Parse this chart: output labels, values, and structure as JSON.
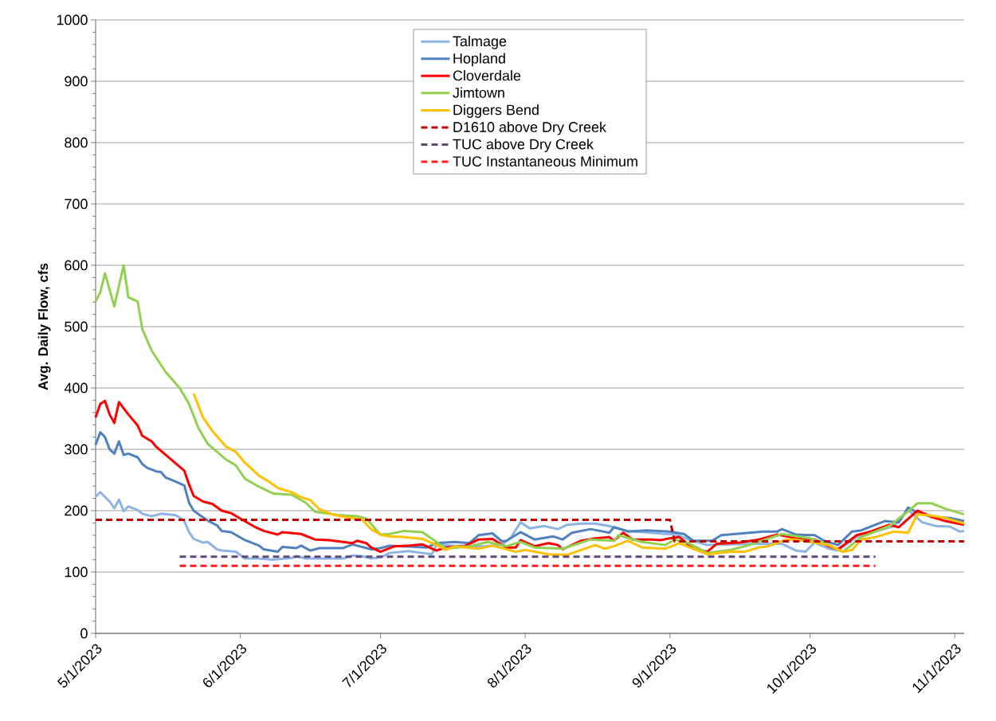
{
  "chart_data": {
    "type": "line",
    "ylabel": "Avg. Daily Flow, cfs",
    "xlim": [
      "2023-05-01",
      "2023-11-03"
    ],
    "xticks": [
      {
        "value": "2023-05-01",
        "label": "5/1/2023"
      },
      {
        "value": "2023-06-01",
        "label": "6/1/2023"
      },
      {
        "value": "2023-07-01",
        "label": "7/1/2023"
      },
      {
        "value": "2023-08-01",
        "label": "8/1/2023"
      },
      {
        "value": "2023-09-01",
        "label": "9/1/2023"
      },
      {
        "value": "2023-10-01",
        "label": "10/1/2023"
      },
      {
        "value": "2023-11-01",
        "label": "11/1/2023"
      }
    ],
    "ylim": [
      0,
      1000
    ],
    "yticks": [
      0,
      100,
      200,
      300,
      400,
      500,
      600,
      700,
      800,
      900,
      1000
    ],
    "grid": "y",
    "legend": "top",
    "series": [
      {
        "name": "Talmage",
        "color": "#8db4e2",
        "x": [
          "2023-05-01",
          "2023-05-02",
          "2023-05-04",
          "2023-05-05",
          "2023-05-06",
          "2023-05-07",
          "2023-05-08",
          "2023-05-10",
          "2023-05-11",
          "2023-05-13",
          "2023-05-15",
          "2023-05-18",
          "2023-05-19",
          "2023-05-20",
          "2023-05-21",
          "2023-05-22",
          "2023-05-24",
          "2023-05-25",
          "2023-05-27",
          "2023-05-28",
          "2023-05-31",
          "2023-06-02",
          "2023-06-05",
          "2023-06-08",
          "2023-06-12",
          "2023-06-13",
          "2023-06-15",
          "2023-06-20",
          "2023-06-23",
          "2023-06-25",
          "2023-06-27",
          "2023-06-29",
          "2023-07-01",
          "2023-07-03",
          "2023-07-07",
          "2023-07-10",
          "2023-07-12",
          "2023-07-13",
          "2023-07-17",
          "2023-07-23",
          "2023-07-27",
          "2023-07-29",
          "2023-07-31",
          "2023-08-02",
          "2023-08-05",
          "2023-08-08",
          "2023-08-10",
          "2023-08-13",
          "2023-08-16",
          "2023-08-19",
          "2023-08-20",
          "2023-08-23",
          "2023-08-28",
          "2023-08-31",
          "2023-09-02",
          "2023-09-05",
          "2023-09-09",
          "2023-09-14",
          "2023-09-20",
          "2023-09-25",
          "2023-09-28",
          "2023-09-30",
          "2023-10-02",
          "2023-10-05",
          "2023-10-07",
          "2023-10-11",
          "2023-10-15",
          "2023-10-19",
          "2023-10-22",
          "2023-10-25",
          "2023-10-28",
          "2023-10-31",
          "2023-11-02",
          "2023-11-03"
        ],
        "values": [
          223,
          230,
          215,
          204,
          218,
          199,
          207,
          201,
          195,
          191,
          195,
          193,
          189,
          183,
          165,
          154,
          148,
          149,
          137,
          135,
          133,
          122,
          122,
          120,
          123,
          126,
          122,
          122,
          122,
          127,
          126,
          122,
          124,
          131,
          134,
          131,
          129,
          144,
          143,
          142,
          144,
          157,
          181,
          171,
          175,
          170,
          177,
          179,
          179,
          175,
          173,
          167,
          164,
          162,
          162,
          153,
          144,
          145,
          146,
          146,
          135,
          133,
          148,
          138,
          135,
          157,
          166,
          175,
          201,
          181,
          175,
          174,
          166,
          167
        ]
      },
      {
        "name": "Hopland",
        "color": "#4f81bd",
        "x": [
          "2023-05-01",
          "2023-05-02",
          "2023-05-03",
          "2023-05-04",
          "2023-05-05",
          "2023-05-06",
          "2023-05-07",
          "2023-05-08",
          "2023-05-10",
          "2023-05-11",
          "2023-05-12",
          "2023-05-14",
          "2023-05-15",
          "2023-05-16",
          "2023-05-18",
          "2023-05-20",
          "2023-05-21",
          "2023-05-22",
          "2023-05-24",
          "2023-05-25",
          "2023-05-27",
          "2023-05-28",
          "2023-05-30",
          "2023-06-02",
          "2023-06-05",
          "2023-06-06",
          "2023-06-09",
          "2023-06-10",
          "2023-06-13",
          "2023-06-14",
          "2023-06-16",
          "2023-06-18",
          "2023-06-23",
          "2023-06-25",
          "2023-06-29",
          "2023-07-01",
          "2023-07-03",
          "2023-07-11",
          "2023-07-13",
          "2023-07-17",
          "2023-07-20",
          "2023-07-22",
          "2023-07-25",
          "2023-07-27",
          "2023-07-28",
          "2023-07-31",
          "2023-08-03",
          "2023-08-07",
          "2023-08-09",
          "2023-08-11",
          "2023-08-15",
          "2023-08-19",
          "2023-08-20",
          "2023-08-23",
          "2023-08-27",
          "2023-09-01",
          "2023-09-04",
          "2023-09-06",
          "2023-09-10",
          "2023-09-12",
          "2023-09-15",
          "2023-09-18",
          "2023-09-21",
          "2023-09-24",
          "2023-09-25",
          "2023-09-28",
          "2023-10-02",
          "2023-10-04",
          "2023-10-07",
          "2023-10-10",
          "2023-10-12",
          "2023-10-15",
          "2023-10-17",
          "2023-10-20",
          "2023-10-22",
          "2023-10-24",
          "2023-10-27",
          "2023-10-31",
          "2023-11-03"
        ],
        "values": [
          307,
          328,
          320,
          300,
          293,
          313,
          291,
          293,
          287,
          276,
          270,
          264,
          263,
          254,
          248,
          241,
          213,
          200,
          189,
          184,
          176,
          167,
          165,
          152,
          143,
          137,
          133,
          141,
          139,
          143,
          135,
          139,
          139,
          145,
          137,
          139,
          143,
          140,
          147,
          149,
          147,
          160,
          163,
          150,
          151,
          165,
          153,
          158,
          153,
          164,
          170,
          164,
          173,
          166,
          168,
          166,
          162,
          151,
          151,
          160,
          162,
          164,
          166,
          166,
          170,
          161,
          160,
          151,
          144,
          166,
          168,
          177,
          183,
          181,
          205,
          197,
          190,
          188,
          183
        ]
      },
      {
        "name": "Cloverdale",
        "color": "#ff0000",
        "x": [
          "2023-05-01",
          "2023-05-02",
          "2023-05-03",
          "2023-05-04",
          "2023-05-05",
          "2023-05-06",
          "2023-05-08",
          "2023-05-10",
          "2023-05-11",
          "2023-05-13",
          "2023-05-14",
          "2023-05-16",
          "2023-05-18",
          "2023-05-20",
          "2023-05-21",
          "2023-05-22",
          "2023-05-24",
          "2023-05-26",
          "2023-05-28",
          "2023-05-30",
          "2023-06-01",
          "2023-06-04",
          "2023-06-06",
          "2023-06-09",
          "2023-06-10",
          "2023-06-14",
          "2023-06-17",
          "2023-06-20",
          "2023-06-22",
          "2023-06-25",
          "2023-06-26",
          "2023-06-28",
          "2023-06-29",
          "2023-07-01",
          "2023-07-04",
          "2023-07-07",
          "2023-07-10",
          "2023-07-13",
          "2023-07-15",
          "2023-07-19",
          "2023-07-22",
          "2023-07-25",
          "2023-07-28",
          "2023-07-30",
          "2023-07-31",
          "2023-08-03",
          "2023-08-06",
          "2023-08-08",
          "2023-08-09",
          "2023-08-13",
          "2023-08-16",
          "2023-08-19",
          "2023-08-20",
          "2023-08-22",
          "2023-08-24",
          "2023-08-28",
          "2023-08-30",
          "2023-09-01",
          "2023-09-03",
          "2023-09-06",
          "2023-09-09",
          "2023-09-11",
          "2023-09-16",
          "2023-09-20",
          "2023-09-24",
          "2023-09-28",
          "2023-10-02",
          "2023-10-05",
          "2023-10-07",
          "2023-10-11",
          "2023-10-14",
          "2023-10-18",
          "2023-10-20",
          "2023-10-24",
          "2023-10-27",
          "2023-10-30",
          "2023-11-03"
        ],
        "values": [
          352,
          374,
          379,
          357,
          343,
          377,
          357,
          339,
          322,
          313,
          304,
          291,
          278,
          265,
          243,
          224,
          215,
          211,
          200,
          196,
          187,
          174,
          167,
          161,
          165,
          162,
          153,
          152,
          150,
          147,
          151,
          147,
          140,
          133,
          142,
          143,
          145,
          135,
          140,
          142,
          153,
          154,
          140,
          140,
          152,
          142,
          147,
          144,
          137,
          151,
          155,
          157,
          151,
          164,
          153,
          153,
          152,
          155,
          157,
          138,
          133,
          146,
          148,
          153,
          161,
          155,
          153,
          142,
          137,
          160,
          166,
          177,
          173,
          200,
          190,
          183,
          177
        ]
      },
      {
        "name": "Jimtown",
        "color": "#92d050",
        "x": [
          "2023-05-01",
          "2023-05-02",
          "2023-05-03",
          "2023-05-05",
          "2023-05-07",
          "2023-05-08",
          "2023-05-10",
          "2023-05-11",
          "2023-05-13",
          "2023-05-16",
          "2023-05-19",
          "2023-05-21",
          "2023-05-23",
          "2023-05-25",
          "2023-05-29",
          "2023-05-31",
          "2023-06-02",
          "2023-06-05",
          "2023-06-08",
          "2023-06-12",
          "2023-06-15",
          "2023-06-17",
          "2023-06-22",
          "2023-06-26",
          "2023-06-28",
          "2023-07-01",
          "2023-07-03",
          "2023-07-06",
          "2023-07-10",
          "2023-07-13",
          "2023-07-15",
          "2023-07-20",
          "2023-07-24",
          "2023-07-28",
          "2023-07-31",
          "2023-08-03",
          "2023-08-09",
          "2023-08-15",
          "2023-08-20",
          "2023-08-21",
          "2023-08-26",
          "2023-08-31",
          "2023-09-02",
          "2023-09-05",
          "2023-09-09",
          "2023-09-14",
          "2023-09-18",
          "2023-09-25",
          "2023-10-01",
          "2023-10-05",
          "2023-10-08",
          "2023-10-12",
          "2023-10-18",
          "2023-10-22",
          "2023-10-24",
          "2023-10-27",
          "2023-10-30",
          "2023-11-03"
        ],
        "values": [
          541,
          556,
          587,
          533,
          600,
          548,
          541,
          496,
          461,
          426,
          400,
          374,
          335,
          309,
          283,
          274,
          252,
          239,
          228,
          226,
          213,
          198,
          193,
          191,
          187,
          161,
          162,
          167,
          165,
          149,
          138,
          142,
          149,
          142,
          149,
          140,
          138,
          153,
          151,
          160,
          149,
          144,
          153,
          147,
          131,
          136,
          144,
          162,
          155,
          144,
          133,
          157,
          175,
          199,
          212,
          212,
          203,
          194
        ]
      },
      {
        "name": "Diggers Bend",
        "color": "#ffc000",
        "x": [
          "2023-05-22",
          "2023-05-24",
          "2023-05-26",
          "2023-05-29",
          "2023-05-31",
          "2023-06-02",
          "2023-06-05",
          "2023-06-07",
          "2023-06-09",
          "2023-06-12",
          "2023-06-14",
          "2023-06-16",
          "2023-06-18",
          "2023-06-21",
          "2023-06-24",
          "2023-06-27",
          "2023-06-29",
          "2023-07-01",
          "2023-07-03",
          "2023-07-06",
          "2023-07-10",
          "2023-07-13",
          "2023-07-15",
          "2023-07-17",
          "2023-07-22",
          "2023-07-25",
          "2023-07-30",
          "2023-08-01",
          "2023-08-06",
          "2023-08-10",
          "2023-08-16",
          "2023-08-18",
          "2023-08-20",
          "2023-08-23",
          "2023-08-26",
          "2023-08-31",
          "2023-09-03",
          "2023-09-06",
          "2023-09-09",
          "2023-09-14",
          "2023-09-17",
          "2023-09-20",
          "2023-09-22",
          "2023-09-26",
          "2023-09-28",
          "2023-10-01",
          "2023-10-05",
          "2023-10-08",
          "2023-10-10",
          "2023-10-12",
          "2023-10-15",
          "2023-10-19",
          "2023-10-22",
          "2023-10-24",
          "2023-10-27",
          "2023-10-30",
          "2023-11-03"
        ],
        "values": [
          391,
          352,
          330,
          304,
          296,
          278,
          257,
          248,
          237,
          230,
          222,
          217,
          202,
          193,
          189,
          186,
          170,
          161,
          158,
          157,
          154,
          144,
          136,
          142,
          138,
          143,
          133,
          136,
          129,
          128,
          144,
          138,
          142,
          151,
          140,
          138,
          147,
          138,
          129,
          133,
          133,
          140,
          142,
          153,
          153,
          149,
          144,
          133,
          136,
          153,
          157,
          166,
          164,
          194,
          192,
          188,
          179
        ]
      },
      {
        "name": "D1610 above Dry Creek",
        "color": "#c00000",
        "line_style": "dashed",
        "x": [
          "2023-05-01",
          "2023-09-01",
          "2023-09-02",
          "2023-11-03"
        ],
        "values": [
          185,
          185,
          150,
          150
        ]
      },
      {
        "name": "TUC above Dry Creek",
        "color": "#604a7b",
        "line_style": "dashed",
        "x": [
          "2023-05-19",
          "2023-10-15"
        ],
        "values": [
          125,
          125
        ]
      },
      {
        "name": "TUC Instantaneous Minimum",
        "color": "#ff2020",
        "line_style": "dashed",
        "x": [
          "2023-05-19",
          "2023-10-15"
        ],
        "values": [
          110,
          110
        ]
      }
    ]
  }
}
